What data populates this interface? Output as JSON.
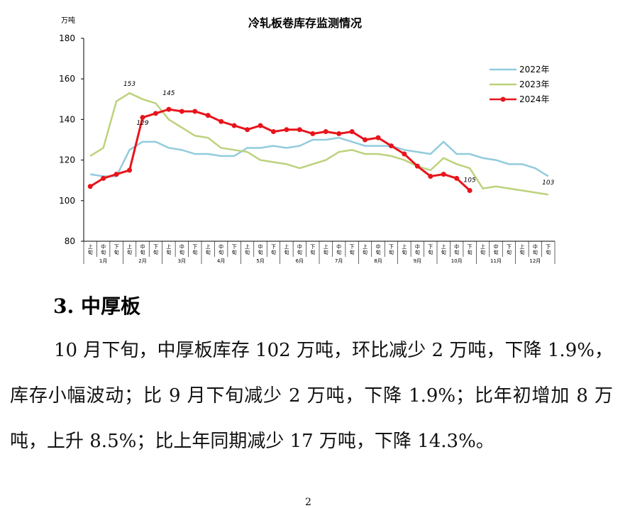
{
  "chart_data": {
    "type": "line",
    "title": "冷轧板卷库存监测情况",
    "y_unit": "万吨",
    "categories": [
      "上旬",
      "中旬",
      "下旬",
      "上旬",
      "中旬",
      "下旬",
      "上旬",
      "中旬",
      "下旬",
      "上旬",
      "中旬",
      "下旬",
      "上旬",
      "中旬",
      "下旬",
      "上旬",
      "中旬",
      "下旬",
      "上旬",
      "中旬",
      "下旬",
      "上旬",
      "中旬",
      "下旬",
      "上旬",
      "中旬",
      "下旬",
      "上旬",
      "中旬",
      "下旬",
      "上旬",
      "中旬",
      "下旬",
      "上旬",
      "中旬",
      "下旬"
    ],
    "groups": [
      "1月",
      "2月",
      "3月",
      "4月",
      "5月",
      "6月",
      "7月",
      "8月",
      "9月",
      "10月",
      "11月",
      "12月"
    ],
    "ylim": [
      80,
      180
    ],
    "yticks": [
      80,
      100,
      120,
      140,
      160,
      180
    ],
    "legend": "upper right",
    "series": [
      {
        "name": "2022年",
        "color": "#92cbdd",
        "values": [
          113,
          112,
          112,
          125,
          129,
          129,
          126,
          125,
          123,
          123,
          122,
          122,
          126,
          126,
          127,
          126,
          127,
          130,
          130,
          131,
          129,
          127,
          127,
          127,
          125,
          124,
          123,
          129,
          123,
          123,
          121,
          120,
          118,
          118,
          116,
          112
        ]
      },
      {
        "name": "2023年",
        "color": "#bcd27c",
        "values": [
          122,
          126,
          149,
          153,
          150,
          148,
          140,
          136,
          132,
          131,
          126,
          125,
          124,
          120,
          119,
          118,
          116,
          118,
          120,
          124,
          125,
          123,
          123,
          122,
          120,
          117,
          115,
          121,
          118,
          116,
          106,
          107,
          106,
          105,
          104,
          103
        ]
      },
      {
        "name": "2024年",
        "color": "#e8141b",
        "marker": true,
        "values": [
          107,
          111,
          113,
          115,
          141,
          143,
          145,
          144,
          144,
          142,
          139,
          137,
          135,
          137,
          134,
          135,
          135,
          133,
          134,
          133,
          134,
          130,
          131,
          127,
          123,
          117,
          112,
          113,
          111,
          105,
          null,
          null,
          null,
          null,
          null,
          null
        ]
      }
    ]
  },
  "heading": "3. 中厚板",
  "paragraph": "10 月下旬，中厚板库存 102 万吨，环比减少 2 万吨，下降 1.9%，库存小幅波动；比 9 月下旬减少 2 万吨，下降 1.9%；比年初增加 8 万吨，上升 8.5%；比上年同期减少 17 万吨，下降 14.3%。",
  "page_number": "2"
}
